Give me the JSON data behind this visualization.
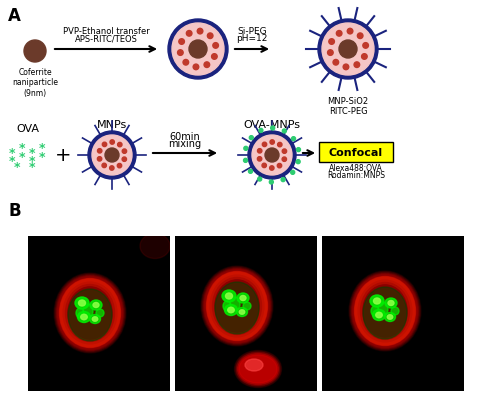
{
  "fig_width": 5.0,
  "fig_height": 4.02,
  "dpi": 100,
  "bg_color": "#ffffff",
  "panel_A_label": "A",
  "panel_B_label": "B",
  "coferrite_label": "Coferrite\nnaniparticle\n(9nm)",
  "arrow1_label_top": "PVP-Ethanol transfer",
  "arrow1_label_bot": "APS-RITC/TEOS",
  "arrow2_label_top": "Si-PEG",
  "arrow2_label_bot": "pH=12",
  "mnp_label": "MNP-SiO2\nRITC-PEG",
  "ova_label": "OVA",
  "mnps_label": "MNPs",
  "plus_label": "+",
  "arrow3_label_top": "60min",
  "arrow3_label_bot": "mixing",
  "ova_mnps_label": "OVA-MNPs",
  "confocal_label": "Confocal",
  "confocal_sub1": "Alexa488:OVA",
  "confocal_sub2": "Rodamin:MNPS",
  "colors": {
    "dark_brown": "#6B3A2A",
    "red_dots": "#C0392B",
    "pink_fill": "#F5C6C6",
    "dark_blue_ring": "#1A237E",
    "spike_color": "#1A237E",
    "green_star": "#2ECC71",
    "yellow_box": "#FFFF00",
    "arrow_color": "#000000"
  }
}
